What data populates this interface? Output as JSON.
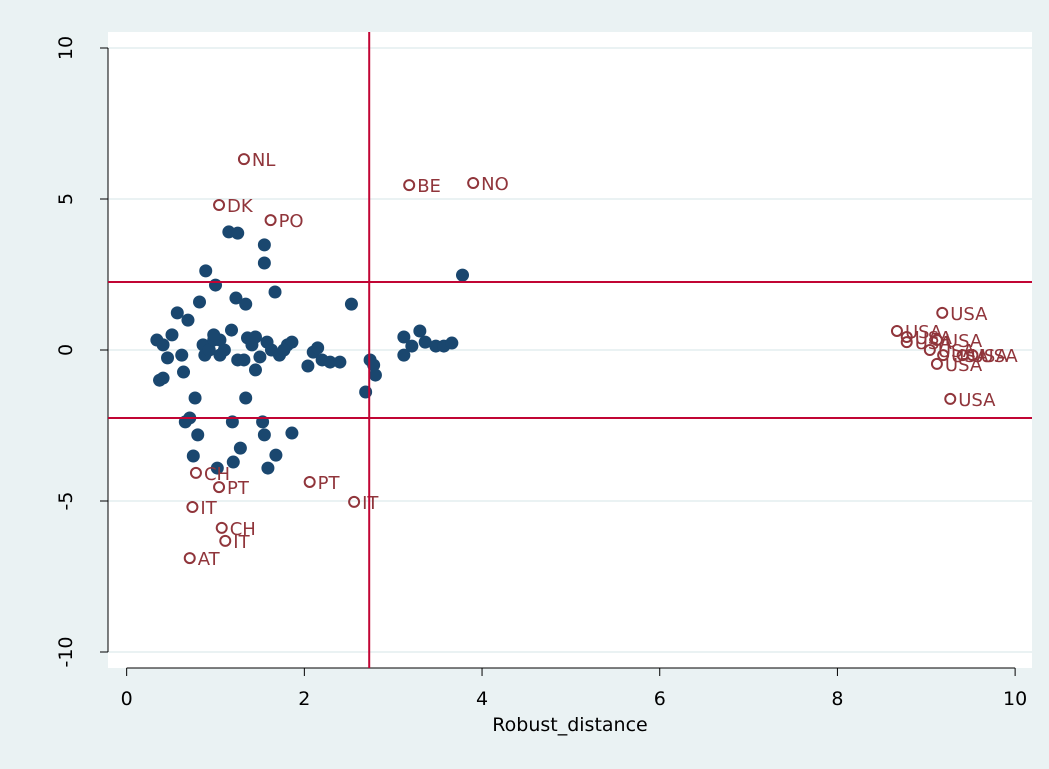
{
  "chart_data": {
    "type": "scatter",
    "xlabel": "Robust_distance",
    "xlim": [
      -0.21,
      10.19
    ],
    "ylim": [
      -10.53,
      10.53
    ],
    "xticks": [
      0,
      2,
      4,
      6,
      8,
      10
    ],
    "yticks": [
      -10,
      -5,
      0,
      5,
      10
    ],
    "grid": true,
    "xline": 2.73,
    "ylines": [
      2.25,
      -2.25
    ],
    "refline_color": "#c10534",
    "series": [
      {
        "marker": "filled",
        "color": "#1a476f",
        "x": [
          0.34,
          0.41,
          0.37,
          0.41,
          0.46,
          0.51,
          0.57,
          0.62,
          0.64,
          0.69,
          0.66,
          0.71,
          0.77,
          0.75,
          0.8,
          0.82,
          0.86,
          0.89,
          0.88,
          0.93,
          0.98,
          1.0,
          1.02,
          1.05,
          1.1,
          1.15,
          1.18,
          1.19,
          1.2,
          1.23,
          1.25,
          1.25,
          1.28,
          1.32,
          1.34,
          1.34,
          1.36,
          1.41,
          1.45,
          1.45,
          1.5,
          1.53,
          1.55,
          1.55,
          1.55,
          1.58,
          1.59,
          1.63,
          1.67,
          1.68,
          1.72,
          1.81,
          1.86,
          1.86,
          2.04,
          2.1,
          2.15,
          2.2,
          2.29,
          2.4,
          2.53,
          2.69,
          2.74,
          2.78,
          2.8,
          3.12,
          3.12,
          3.21,
          3.3,
          3.36,
          3.48,
          3.57,
          3.66,
          3.78,
          0.98,
          1.05,
          1.77
        ],
        "values": [
          0.33,
          0.17,
          -1.0,
          -0.93,
          -0.26,
          0.5,
          1.23,
          -0.17,
          -0.73,
          0.99,
          -2.38,
          -2.25,
          -1.59,
          -3.51,
          -2.81,
          1.59,
          0.17,
          2.62,
          -0.17,
          0.0,
          0.33,
          2.15,
          -3.91,
          0.33,
          0.0,
          3.91,
          0.66,
          -2.38,
          -3.71,
          1.72,
          3.87,
          -0.33,
          -3.25,
          -0.33,
          1.52,
          -1.59,
          0.4,
          0.17,
          -0.66,
          0.43,
          -0.23,
          -2.38,
          3.48,
          2.88,
          -2.81,
          0.26,
          -3.91,
          0.0,
          1.92,
          -3.48,
          -0.17,
          0.17,
          0.26,
          -2.75,
          -0.53,
          -0.07,
          0.07,
          -0.33,
          -0.4,
          -0.4,
          1.52,
          -1.39,
          -0.33,
          -0.5,
          -0.83,
          0.43,
          -0.17,
          0.13,
          0.63,
          0.26,
          0.13,
          0.13,
          0.23,
          2.48,
          0.5,
          -0.17,
          0.0
        ]
      },
      {
        "marker": "hollow",
        "color": "#90353b",
        "x": [
          1.32,
          1.04,
          1.62,
          3.18,
          3.9,
          0.78,
          1.04,
          0.74,
          2.06,
          2.56,
          1.07,
          1.11,
          0.71,
          9.18,
          8.67,
          8.78,
          8.78,
          9.12,
          9.04,
          9.19,
          9.41,
          9.52,
          9.12,
          9.27
        ],
        "values": [
          6.32,
          4.8,
          4.3,
          5.46,
          5.53,
          -4.07,
          -4.54,
          -5.2,
          -4.37,
          -5.03,
          -5.89,
          -6.32,
          -6.89,
          1.23,
          0.63,
          0.43,
          0.26,
          0.33,
          0.0,
          -0.17,
          -0.17,
          -0.17,
          -0.46,
          -1.62
        ],
        "labels": [
          "NL",
          "DK",
          "PO",
          "BE",
          "NO",
          "CH",
          "PT",
          "IT",
          "PT",
          "IT",
          "CH",
          "IT",
          "AT",
          "USA",
          "USA",
          "USA",
          "USA",
          "USA",
          "USA",
          "USA",
          "USA",
          "USA",
          "USA",
          "USA"
        ]
      }
    ]
  }
}
